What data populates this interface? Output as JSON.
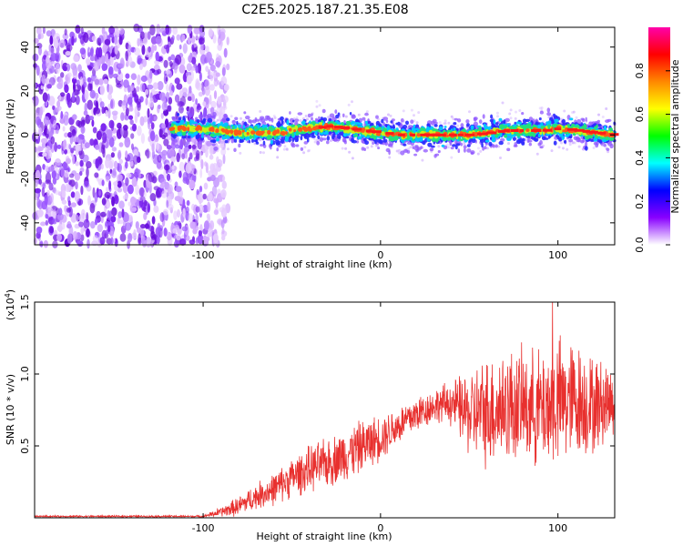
{
  "figure": {
    "title": "C2E5.2025.187.21.35.E08"
  },
  "chart_data": [
    {
      "type": "heatmap",
      "xlabel": "Height of straight line (km)",
      "ylabel": "Frequency (Hz)",
      "xlim": [
        -195,
        132
      ],
      "ylim": [
        -50,
        49
      ],
      "x_ticks": [
        -100,
        0,
        100
      ],
      "x_tick_labels": [
        "-100",
        "0",
        "100"
      ],
      "y_ticks": [
        -40,
        -20,
        0,
        20,
        40
      ],
      "y_tick_labels": [
        "-40",
        "-20",
        "0",
        "20",
        "40"
      ],
      "grid": false,
      "noise_region_x": [
        -195,
        -92
      ],
      "ridge": {
        "x": [
          -115,
          -100,
          -90,
          -80,
          -70,
          -60,
          -50,
          -40,
          -30,
          -20,
          -10,
          0,
          10,
          20,
          30,
          40,
          50,
          60,
          70,
          80,
          90,
          100,
          110,
          120,
          132
        ],
        "y": [
          3,
          3,
          2,
          1,
          1,
          1,
          2,
          3,
          4,
          3,
          2,
          1,
          0,
          0,
          0,
          0,
          0,
          1,
          2,
          2,
          2,
          3,
          2,
          1,
          0
        ]
      },
      "colorbar": {
        "label": "Normalized spectral amplitude",
        "range": [
          0,
          1
        ],
        "ticks": [
          0.0,
          0.2,
          0.4,
          0.6,
          0.8
        ],
        "tick_labels": [
          "0.0",
          "0.2",
          "0.4",
          "0.6",
          "0.8"
        ],
        "colormap": [
          "#ffffff",
          "#8800ff",
          "#0000ff",
          "#00ffff",
          "#00ff00",
          "#ffff00",
          "#ff8800",
          "#ff0000",
          "#ff00aa"
        ]
      }
    },
    {
      "type": "line",
      "xlabel": "Height of straight line (km)",
      "ylabel": "SNR (10 * v/v)",
      "y_multiplier": "(x10",
      "y_multiplier_exp": "4",
      "y_multiplier_close": ")",
      "xlim": [
        -195,
        132
      ],
      "ylim": [
        0,
        1.5
      ],
      "x_ticks": [
        -100,
        0,
        100
      ],
      "x_tick_labels": [
        "-100",
        "0",
        "100"
      ],
      "y_ticks": [
        0.5,
        1.0,
        1.5
      ],
      "y_tick_labels": [
        "0.5",
        "1.0",
        "1.5"
      ],
      "grid": false,
      "series": [
        {
          "color": "#e8302e",
          "envelope": {
            "x": [
              -195,
              -100,
              -90,
              -80,
              -70,
              -60,
              -50,
              -40,
              -30,
              -20,
              -10,
              0,
              10,
              20,
              30,
              40,
              50,
              60,
              70,
              80,
              90,
              100,
              110,
              120,
              132
            ],
            "mean": [
              0.01,
              0.01,
              0.04,
              0.08,
              0.15,
              0.2,
              0.28,
              0.34,
              0.38,
              0.44,
              0.5,
              0.56,
              0.64,
              0.72,
              0.78,
              0.8,
              0.72,
              0.74,
              0.78,
              0.78,
              0.76,
              0.8,
              0.82,
              0.78,
              0.82
            ],
            "spread": [
              0.005,
              0.006,
              0.03,
              0.06,
              0.08,
              0.1,
              0.12,
              0.14,
              0.15,
              0.16,
              0.16,
              0.14,
              0.12,
              0.12,
              0.1,
              0.14,
              0.26,
              0.34,
              0.36,
              0.34,
              0.36,
              0.4,
              0.36,
              0.3,
              0.22
            ],
            "peak_x": 97,
            "peak_y": 1.5
          }
        }
      ]
    }
  ]
}
